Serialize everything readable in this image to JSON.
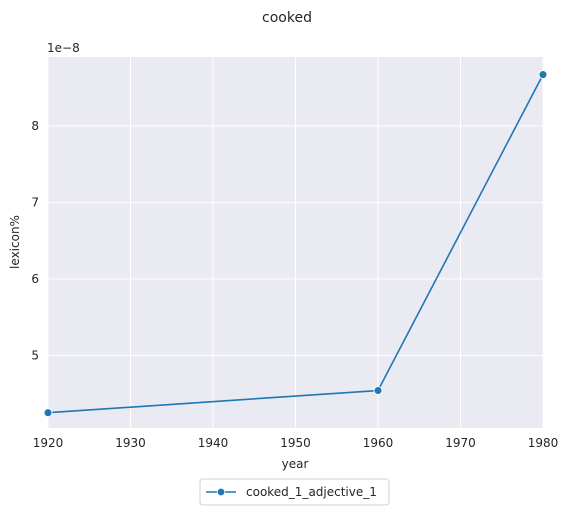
{
  "chart_data": {
    "type": "line",
    "title": "cooked",
    "xlabel": "year",
    "ylabel": "lexicon%",
    "y_multiplier_label": "1e−8",
    "x_ticks": [
      "1920",
      "1930",
      "1940",
      "1950",
      "1960",
      "1970",
      "1980"
    ],
    "y_ticks": [
      "5",
      "6",
      "7",
      "8"
    ],
    "xlim": [
      1920,
      1980
    ],
    "ylim": [
      4.05e-08,
      8.9e-08
    ],
    "grid": true,
    "legend_position": "bottom-center",
    "series": [
      {
        "name": "cooked_1_adjective_1",
        "color": "#1f77b4",
        "marker": "circle",
        "x": [
          1920,
          1960,
          1980
        ],
        "y": [
          4.25e-08,
          4.54e-08,
          8.67e-08
        ]
      }
    ]
  }
}
